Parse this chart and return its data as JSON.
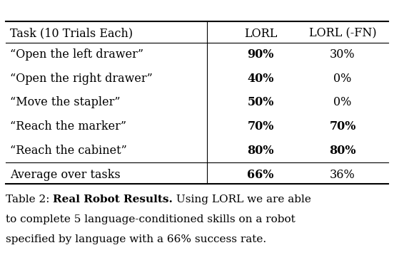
{
  "header": [
    "Task (10 Trials Each)",
    "LORL",
    "LORL (-FN)"
  ],
  "row_data": [
    [
      "“Open the left drawer”",
      "90%",
      "30%",
      true,
      false
    ],
    [
      "“Open the right drawer”",
      "40%",
      "0%",
      true,
      false
    ],
    [
      "“Move the stapler”",
      "50%",
      "0%",
      true,
      false
    ],
    [
      "“Reach the marker”",
      "70%",
      "70%",
      true,
      true
    ],
    [
      "“Reach the cabinet”",
      "80%",
      "80%",
      true,
      true
    ]
  ],
  "footer_row": [
    "Average over tasks",
    "66%",
    "36%",
    true,
    false
  ],
  "caption_prefix": "Table 2: ",
  "caption_bold": "Real Robot Results.",
  "caption_rest_line1": " Using LORL we are able",
  "caption_line2": "to complete 5 language-conditioned skills on a robot",
  "caption_line3": "specified by language with a 66% success rate.",
  "bg_color": "#ffffff",
  "text_color": "#000000",
  "font_size": 11.5,
  "caption_font_size": 11.0
}
